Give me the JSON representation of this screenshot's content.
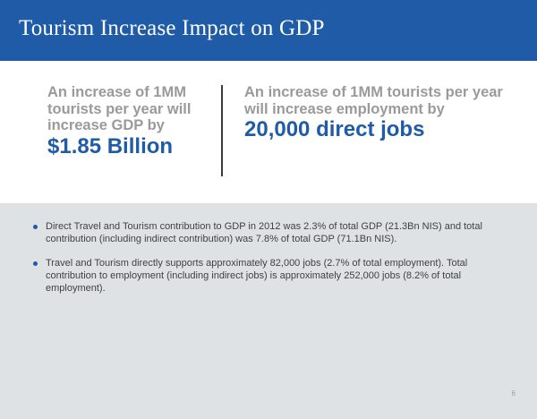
{
  "header": {
    "title": "Tourism Increase Impact on GDP"
  },
  "stats": {
    "left": {
      "description": "An increase of 1MM tourists per year will increase GDP by",
      "value": "$1.85 Billion"
    },
    "right": {
      "description": "An increase of 1MM tourists per year will increase employment by",
      "value": "20,000 direct jobs"
    }
  },
  "bullets": [
    {
      "text": "Direct Travel and Tourism contribution to GDP in 2012 was 2.3% of total GDP (21.3Bn NIS) and total contribution (including indirect contribution) was 7.8% of total GDP (71.1Bn NIS)."
    },
    {
      "text": "Travel and Tourism directly supports approximately 82,000 jobs (2.7% of total employment). Total contribution to employment (including indirect jobs) is approximately 252,000 jobs (8.2% of total employment)."
    }
  ],
  "page_number": "6",
  "colors": {
    "brand_blue": "#1f5ba6",
    "gray_text": "#9a9a9a",
    "panel_bg": "#dfe2e5"
  }
}
